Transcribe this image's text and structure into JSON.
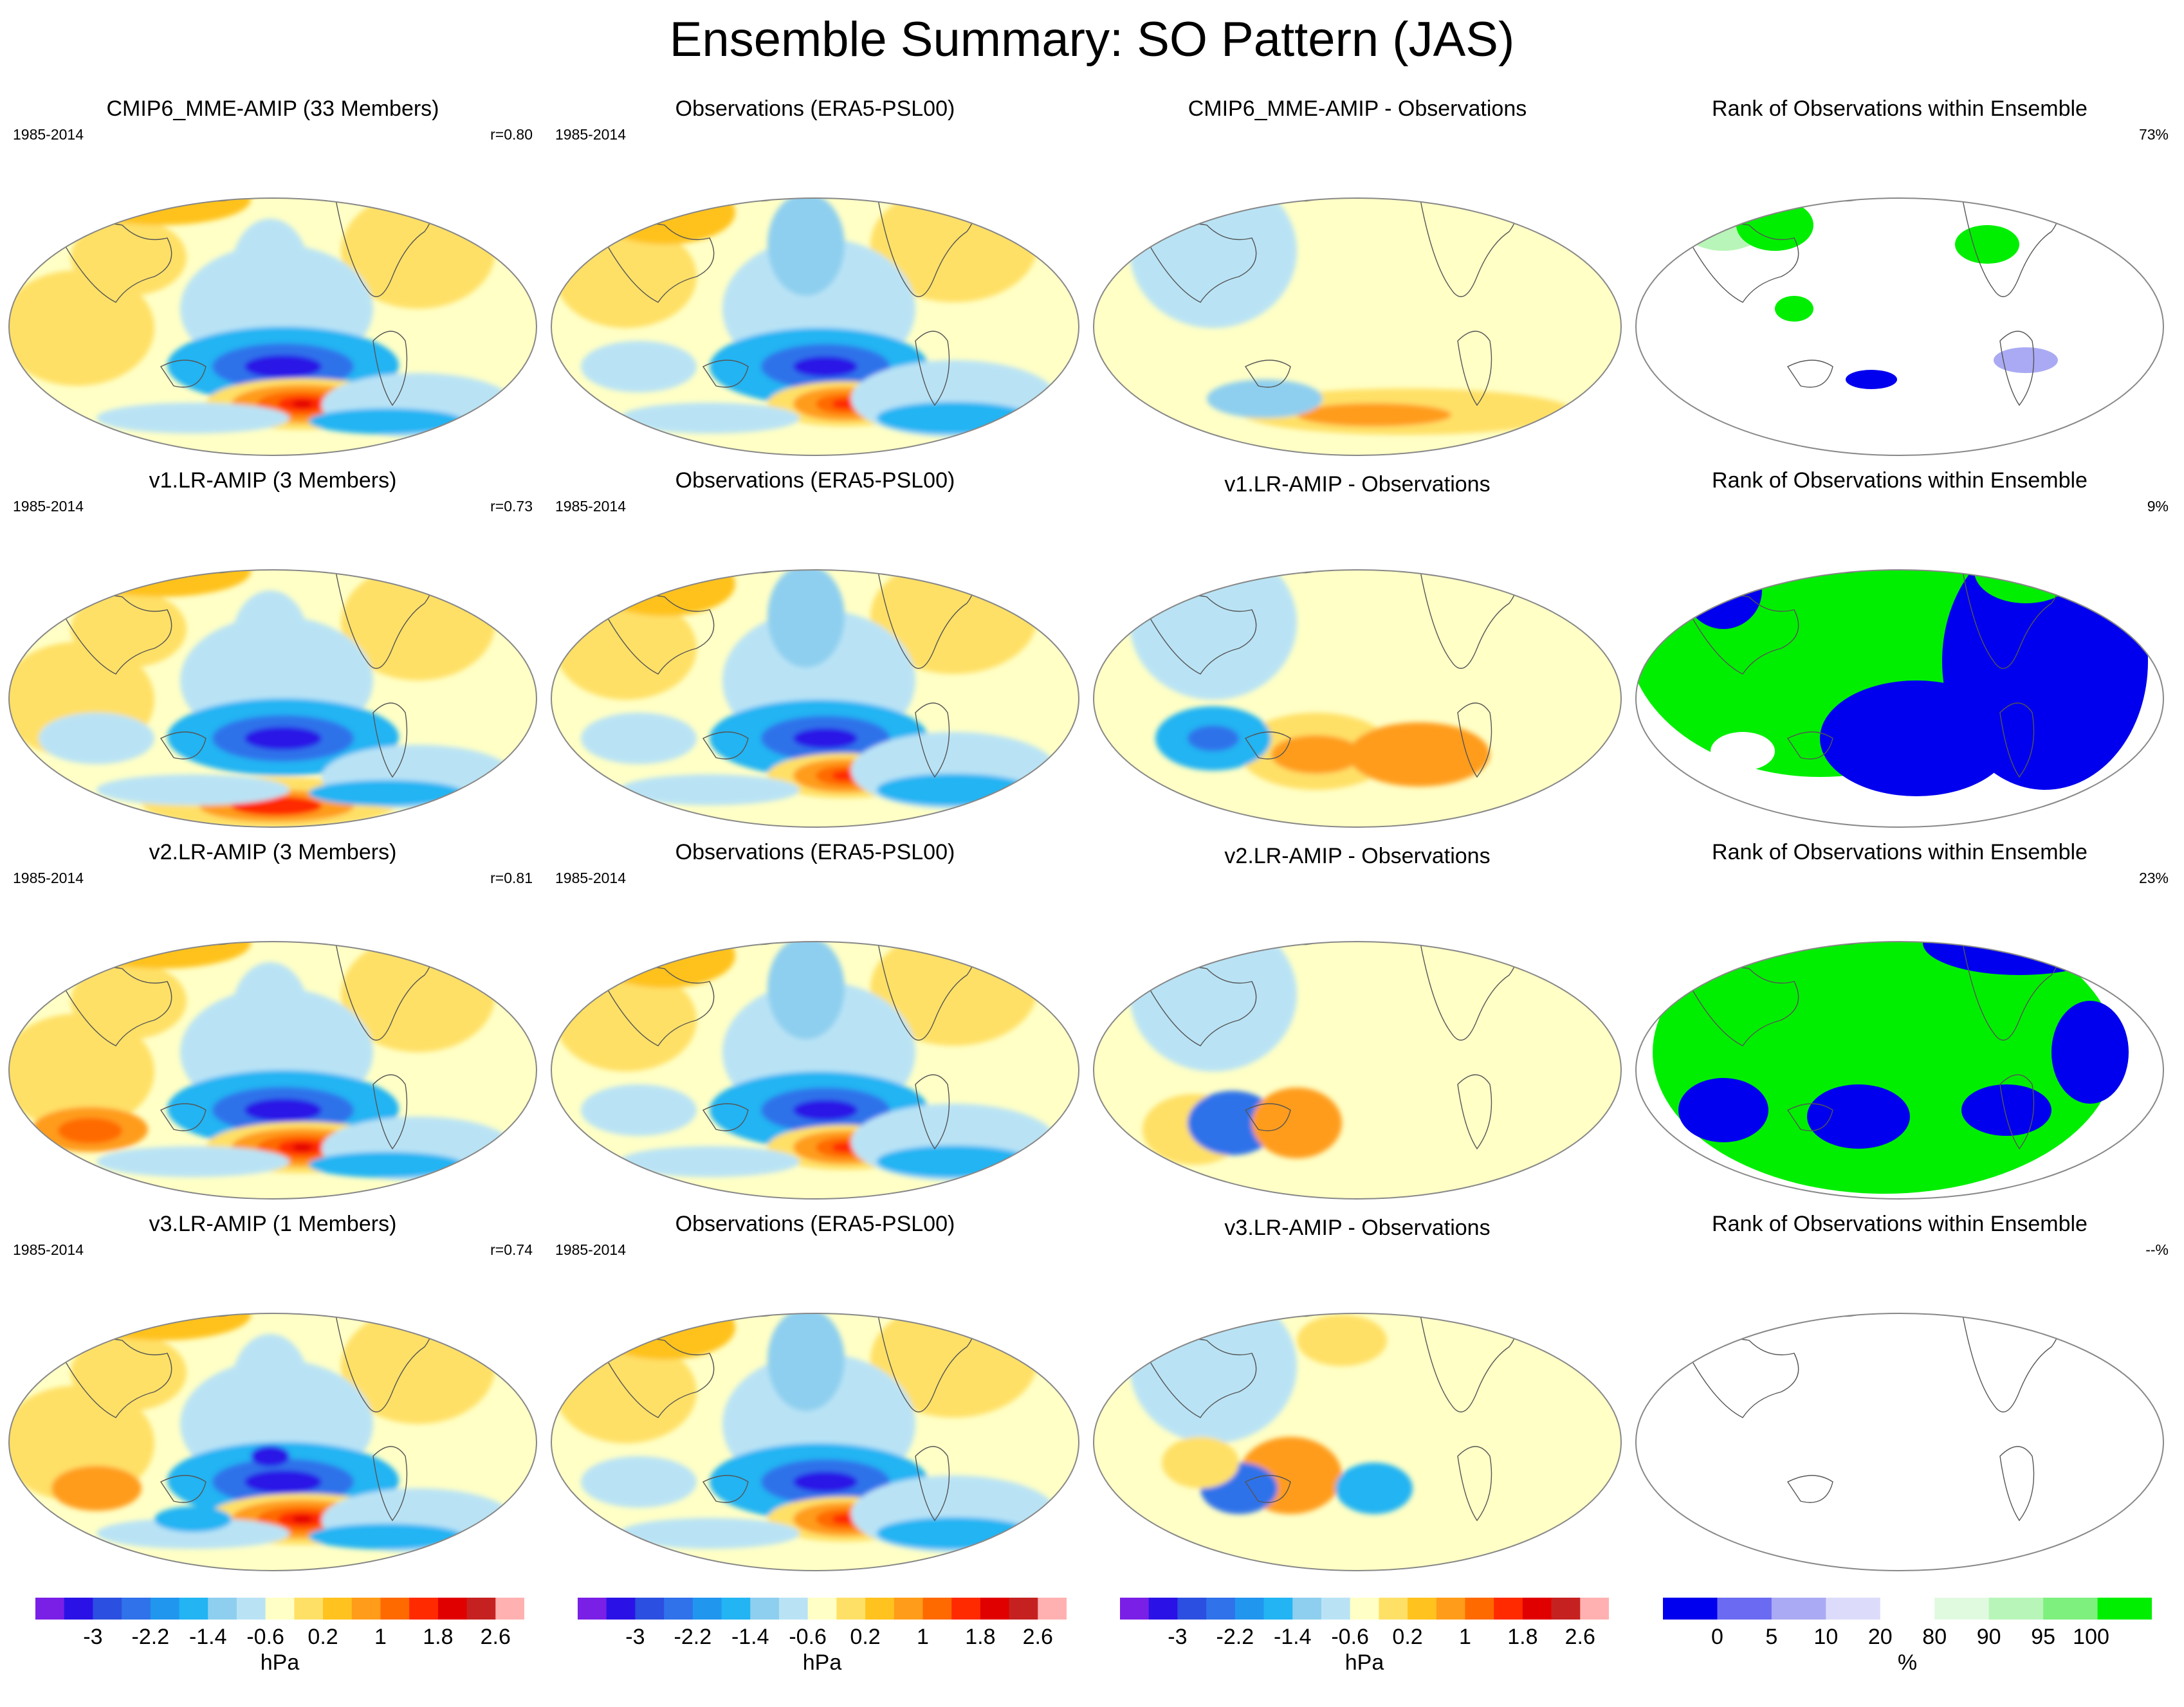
{
  "title": "Ensemble Summary: SO Pattern (JAS)",
  "rows": [
    {
      "model": {
        "title": "CMIP6_MME-AMIP (33 Members)",
        "period": "1985-2014",
        "corr": "r=0.80"
      },
      "obs": {
        "title": "Observations (ERA5-PSL00)",
        "period": "1985-2014"
      },
      "diff": {
        "title": "CMIP6_MME-AMIP - Observations"
      },
      "rank": {
        "title": "Rank of Observations within Ensemble",
        "percent": "73%"
      }
    },
    {
      "model": {
        "title": "v1.LR-AMIP (3 Members)",
        "period": "1985-2014",
        "corr": "r=0.73"
      },
      "obs": {
        "title": "Observations (ERA5-PSL00)",
        "period": "1985-2014"
      },
      "diff": {
        "title": "v1.LR-AMIP - Observations"
      },
      "rank": {
        "title": "Rank of Observations within Ensemble",
        "percent": "9%"
      }
    },
    {
      "model": {
        "title": "v2.LR-AMIP (3 Members)",
        "period": "1985-2014",
        "corr": "r=0.81"
      },
      "obs": {
        "title": "Observations (ERA5-PSL00)",
        "period": "1985-2014"
      },
      "diff": {
        "title": "v2.LR-AMIP - Observations"
      },
      "rank": {
        "title": "Rank of Observations within Ensemble",
        "percent": "23%"
      }
    },
    {
      "model": {
        "title": "v3.LR-AMIP (1 Members)",
        "period": "1985-2014",
        "corr": "r=0.74"
      },
      "obs": {
        "title": "Observations (ERA5-PSL00)",
        "period": "1985-2014"
      },
      "diff": {
        "title": "v3.LR-AMIP - Observations"
      },
      "rank": {
        "title": "Rank of Observations within Ensemble",
        "percent": "--%"
      }
    }
  ],
  "colorbars": {
    "hpa": {
      "unit": "hPa",
      "ticks": [
        "-3",
        "-2.2",
        "-1.4",
        "-0.6",
        "0.2",
        "1",
        "1.8",
        "2.6"
      ],
      "colors": [
        "#7a1fe6",
        "#2a12e6",
        "#2b4fe0",
        "#2f72ea",
        "#2196ef",
        "#22b4f3",
        "#8ecfef",
        "#b9e3f5",
        "#ffffc6",
        "#ffe066",
        "#ffc21f",
        "#ff9c1a",
        "#ff6a00",
        "#ff2a00",
        "#e10000",
        "#c62121",
        "#ffb1b1"
      ]
    },
    "rank": {
      "unit": "%",
      "ticks": [
        "0",
        "5",
        "10",
        "20",
        "80",
        "90",
        "95",
        "100"
      ],
      "colors": [
        "#0000ee",
        "#6a6af2",
        "#aaaaf4",
        "#dcdcfa",
        "#ffffff",
        "#e0fae0",
        "#b8f5b8",
        "#7ef07e",
        "#00ef00"
      ]
    }
  },
  "chart_data": [
    {
      "type": "heatmap",
      "title": "Ensemble Summary: SO Pattern (JAS)",
      "description_fields": "4 rows x 4 columns of global map panels; columns: model mean, observations, model minus observations, rank of observations within ensemble",
      "colorbar_hpa": {
        "unit": "hPa",
        "ticks": [
          -3,
          -2.2,
          -1.4,
          -0.6,
          0.2,
          1,
          1.8,
          2.6
        ],
        "range": [
          -3.4,
          3.4
        ],
        "levels": 17
      },
      "colorbar_rank": {
        "unit": "%",
        "ticks": [
          0,
          5,
          10,
          20,
          80,
          90,
          95,
          100
        ]
      },
      "panels": [
        {
          "row": 1,
          "title": "CMIP6_MME-AMIP (33 Members)",
          "period": "1985-2014",
          "pattern_correlation": 0.8
        },
        {
          "row": 2,
          "title": "v1.LR-AMIP (3 Members)",
          "period": "1985-2014",
          "pattern_correlation": 0.73
        },
        {
          "row": 3,
          "title": "v2.LR-AMIP (3 Members)",
          "period": "1985-2014",
          "pattern_correlation": 0.81
        },
        {
          "row": 4,
          "title": "v3.LR-AMIP (1 Members)",
          "period": "1985-2014",
          "pattern_correlation": 0.74
        }
      ],
      "rank_percent": [
        "73%",
        "9%",
        "23%",
        "--%"
      ]
    }
  ]
}
